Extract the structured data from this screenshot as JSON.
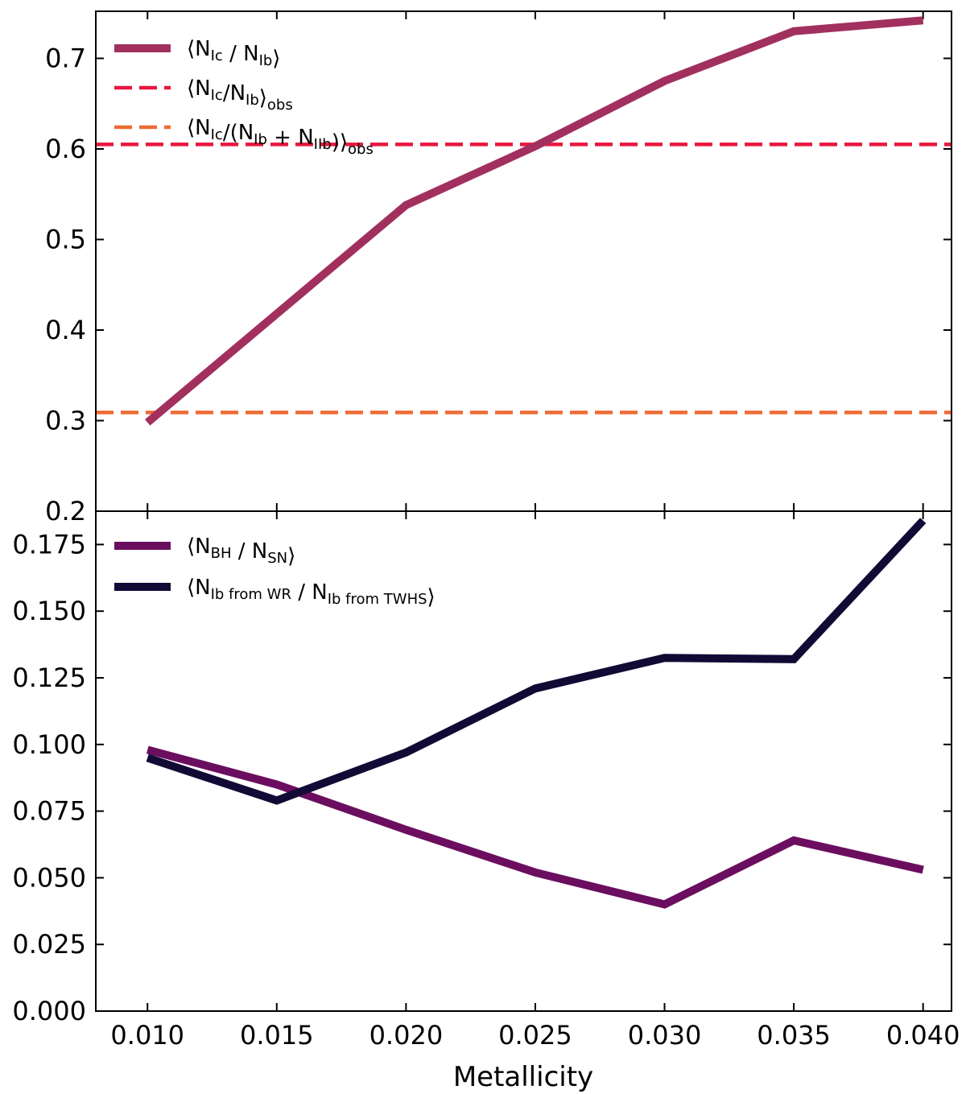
{
  "chart_data": [
    {
      "type": "line",
      "panel": "top",
      "xlabel": "",
      "ylabel": "",
      "xlim": [
        0.008,
        0.0411
      ],
      "ylim": [
        0.2,
        0.752
      ],
      "yticks": [
        0.2,
        0.3,
        0.4,
        0.5,
        0.6,
        0.7
      ],
      "ytick_labels": [
        "0.2",
        "0.3",
        "0.4",
        "0.5",
        "0.6",
        "0.7"
      ],
      "legend_position": "upper-left",
      "series": [
        {
          "name": "⟨N_Ic / N_Ib⟩",
          "legend_main": [
            "⟨N",
            " / N",
            "⟩"
          ],
          "legend_subs": [
            "Ic",
            "Ib"
          ],
          "color": "#a2305e",
          "style": "solid",
          "x": [
            0.01,
            0.015,
            0.02,
            0.025,
            0.03,
            0.035,
            0.04
          ],
          "y": [
            0.298,
            0.418,
            0.538,
            0.603,
            0.675,
            0.73,
            0.742
          ]
        }
      ],
      "hlines": [
        {
          "name": "⟨N_Ic/N_Ib⟩_obs",
          "legend_main": [
            "⟨N",
            "/N",
            "⟩"
          ],
          "legend_subs": [
            "Ic",
            "Ib",
            "obs"
          ],
          "color": "#e8163f",
          "style": "dashed",
          "y": 0.605
        },
        {
          "name": "⟨N_Ic/(N_Ib + N_IIb)⟩_obs",
          "legend_main": [
            "⟨N",
            "/(N",
            " + N",
            ")⟩"
          ],
          "legend_subs": [
            "Ic",
            "Ib",
            "IIb",
            "obs"
          ],
          "color": "#ee6b35",
          "style": "dashed",
          "y": 0.309
        }
      ]
    },
    {
      "type": "line",
      "panel": "bottom",
      "xlabel": "Metallicity",
      "ylabel": "",
      "xlim": [
        0.008,
        0.0411
      ],
      "ylim": [
        0.0,
        0.1875
      ],
      "xticks": [
        0.01,
        0.015,
        0.02,
        0.025,
        0.03,
        0.035,
        0.04
      ],
      "xtick_labels": [
        "0.010",
        "0.015",
        "0.020",
        "0.025",
        "0.030",
        "0.035",
        "0.040"
      ],
      "yticks": [
        0.0,
        0.025,
        0.05,
        0.075,
        0.1,
        0.125,
        0.15,
        0.175
      ],
      "ytick_labels": [
        "0.000",
        "0.025",
        "0.050",
        "0.075",
        "0.100",
        "0.125",
        "0.150",
        "0.175"
      ],
      "legend_position": "upper-left",
      "series": [
        {
          "name": "⟨N_BH / N_SN⟩",
          "legend_main": [
            "⟨N",
            " / N",
            "⟩"
          ],
          "legend_subs": [
            "BH",
            "SN"
          ],
          "color": "#6b0e5f",
          "style": "solid",
          "x": [
            0.01,
            0.015,
            0.02,
            0.025,
            0.03,
            0.035,
            0.04
          ],
          "y": [
            0.098,
            0.085,
            0.068,
            0.052,
            0.04,
            0.064,
            0.053
          ]
        },
        {
          "name": "⟨N_Ib from WR / N_Ib from TWHS⟩",
          "legend_main": [
            "⟨N",
            " / N",
            "⟩"
          ],
          "legend_subs": [
            "Ib from WR",
            "Ib from TWHS"
          ],
          "color": "#120a35",
          "style": "solid",
          "x": [
            0.01,
            0.015,
            0.02,
            0.025,
            0.03,
            0.035,
            0.04
          ],
          "y": [
            0.095,
            0.079,
            0.097,
            0.121,
            0.1325,
            0.132,
            0.184
          ]
        }
      ]
    }
  ]
}
